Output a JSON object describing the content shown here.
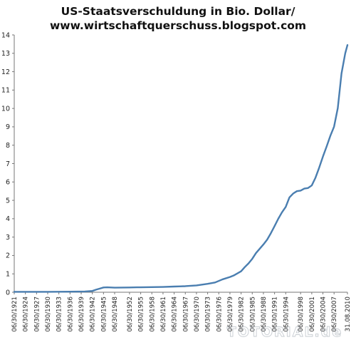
{
  "chart_data": {
    "type": "line",
    "title_line1": "US-Staatsverschuldung in Bio. Dollar/",
    "title_line2": "www.wirtschaftquerschuss.blogspot.com",
    "xlabel": "",
    "ylabel": "",
    "ylim": [
      0,
      14
    ],
    "y_ticks": [
      0,
      1,
      2,
      3,
      4,
      5,
      6,
      7,
      8,
      9,
      10,
      11,
      12,
      13,
      14
    ],
    "grid": false,
    "x_range": [
      1921,
      2010.6
    ],
    "x_tick_labels": [
      "06/30/1921",
      "06/30/1924",
      "06/30/1927",
      "06/30/1930",
      "06/30/1933",
      "06/30/1936",
      "06/30/1939",
      "06/30/1942",
      "06/30/1945",
      "06/30/1948",
      "06/30/1952",
      "06/30/1955",
      "06/30/1958",
      "06/30/1961",
      "06/30/1964",
      "06/30/1967",
      "06/30/1970",
      "06/30/1973",
      "06/30/1976",
      "06/30/1979",
      "06/30/1982",
      "06/30/1985",
      "06/30/1988",
      "06/30/1991",
      "06/30/1994",
      "06/30/1998",
      "06/30/2001",
      "06/30/2004",
      "06/30/2007",
      "31.08.2010"
    ],
    "x_tick_years": [
      1921,
      1924,
      1927,
      1930,
      1933,
      1936,
      1939,
      1942,
      1945,
      1948,
      1952,
      1955,
      1958,
      1961,
      1964,
      1967,
      1970,
      1973,
      1976,
      1979,
      1982,
      1985,
      1988,
      1991,
      1994,
      1998,
      2001,
      2004,
      2007,
      2010.6
    ],
    "series": [
      {
        "color": "#4a7eb0",
        "x": [
          1921,
          1930,
          1936,
          1940,
          1942,
          1943,
          1944,
          1945,
          1946,
          1948,
          1952,
          1954,
          1955,
          1958,
          1961,
          1964,
          1967,
          1970,
          1973,
          1975,
          1977,
          1979,
          1980,
          1982,
          1983,
          1984,
          1985,
          1986,
          1988,
          1989,
          1990,
          1991,
          1992,
          1993,
          1994,
          1995,
          1996,
          1997,
          1998,
          1999,
          2000,
          2001,
          2002,
          2003,
          2004,
          2005,
          2006,
          2007,
          2008,
          2009,
          2010,
          2010.6
        ],
        "values": [
          0.02,
          0.02,
          0.03,
          0.04,
          0.07,
          0.14,
          0.2,
          0.26,
          0.27,
          0.25,
          0.26,
          0.27,
          0.27,
          0.28,
          0.29,
          0.31,
          0.33,
          0.37,
          0.46,
          0.53,
          0.7,
          0.83,
          0.91,
          1.14,
          1.37,
          1.57,
          1.82,
          2.13,
          2.6,
          2.86,
          3.21,
          3.6,
          4.0,
          4.35,
          4.64,
          5.16,
          5.37,
          5.5,
          5.53,
          5.64,
          5.67,
          5.81,
          6.23,
          6.78,
          7.38,
          7.93,
          8.51,
          9.01,
          10.02,
          11.9,
          13.0,
          13.45
        ]
      }
    ]
  },
  "watermark": "TOTORIAL.de"
}
